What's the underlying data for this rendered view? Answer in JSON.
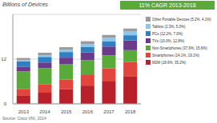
{
  "chart_data": {
    "type": "bar",
    "ylabel": "Billions of Devices",
    "annotation": "11% CAGR 2013-2018",
    "source": "Source: Cisco VNI, 2014",
    "categories": [
      "2013",
      "2014",
      "2015",
      "2016",
      "2017",
      "2018"
    ],
    "series": [
      {
        "name": "M2M (18.6%, 35.2%)",
        "color": "#b8202a",
        "values": [
          2.3,
          3.0,
          3.9,
          4.9,
          6.0,
          7.3
        ]
      },
      {
        "name": "Smartphones (14.1%, 19.1%)",
        "color": "#e2453c",
        "values": [
          1.7,
          2.2,
          2.6,
          3.0,
          3.5,
          3.9
        ]
      },
      {
        "name": "Non-Smartphones (37.6%, 15.6%)",
        "color": "#5aaa3a",
        "values": [
          4.7,
          4.4,
          4.1,
          3.8,
          3.5,
          3.2
        ]
      },
      {
        "name": "TVs (10.0%, 12.8%)",
        "color": "#6c3a8c",
        "values": [
          1.2,
          1.5,
          1.8,
          2.1,
          2.4,
          2.6
        ]
      },
      {
        "name": "PCs (12.2%, 7.0%)",
        "color": "#2f7fc1",
        "values": [
          1.5,
          1.5,
          1.5,
          1.5,
          1.4,
          1.4
        ]
      },
      {
        "name": "Tablets (2.3%, 5.0%)",
        "color": "#8cc6ea",
        "values": [
          0.3,
          0.4,
          0.6,
          0.7,
          0.9,
          1.0
        ]
      },
      {
        "name": "Other Portable Devices (5.2%, 4.1%)",
        "color": "#9b9b9b",
        "values": [
          0.6,
          0.7,
          0.7,
          0.8,
          0.8,
          0.8
        ]
      }
    ],
    "ylim": [
      0,
      24
    ],
    "yticks": [
      0,
      12
    ],
    "grid": true,
    "stacked": true,
    "legend": "right"
  }
}
